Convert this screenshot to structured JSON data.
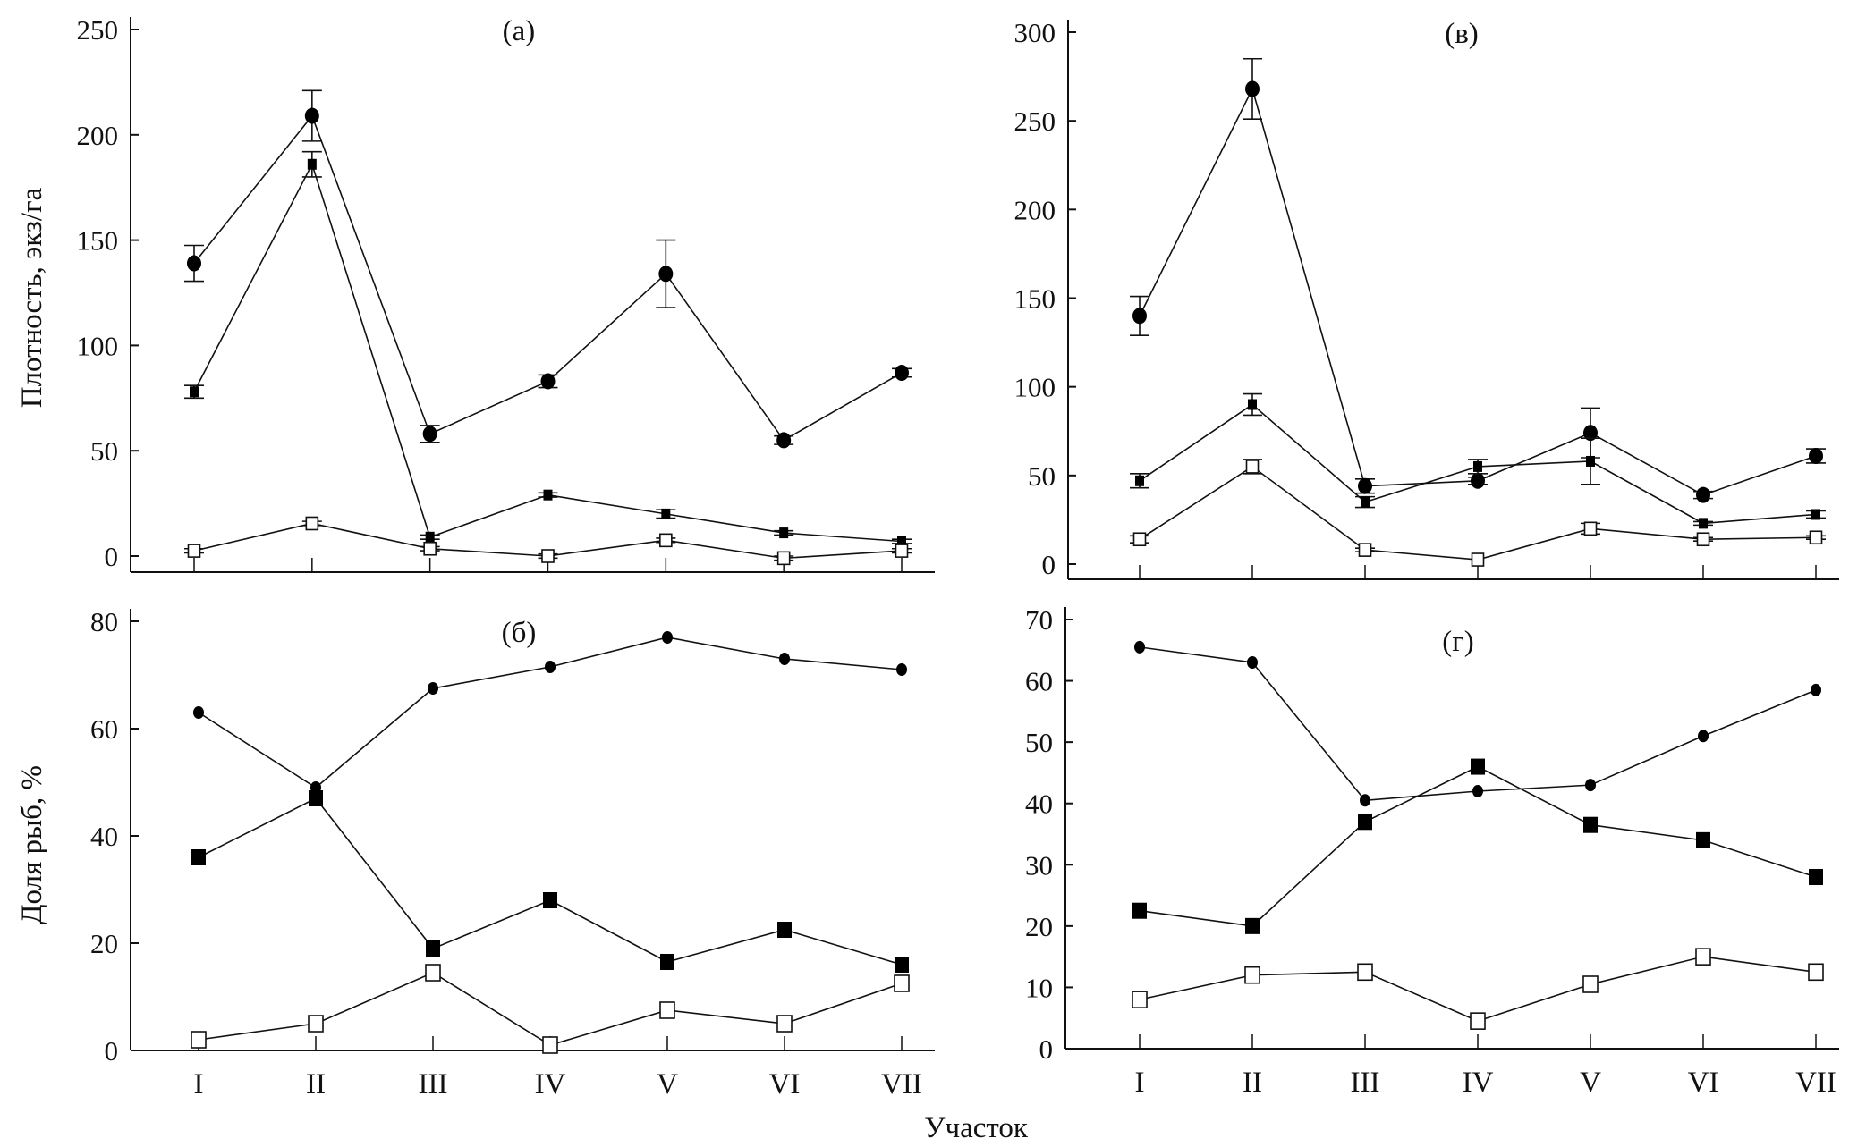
{
  "chart_data": [
    {
      "id": "a",
      "type": "line",
      "title": "(а)",
      "ylabel": "Плотность, экз/га",
      "categories": [
        "I",
        "II",
        "III",
        "IV",
        "V",
        "VI",
        "VII"
      ],
      "ylim": [
        0,
        250
      ],
      "yticks": [
        0,
        50,
        100,
        150,
        200,
        250
      ],
      "series": [
        {
          "marker": "filled-circle",
          "values": [
            139,
            209,
            58,
            83,
            134,
            55,
            87
          ],
          "errors": [
            8.5,
            12,
            4,
            3,
            16,
            2,
            2
          ]
        },
        {
          "marker": "small-filled-square",
          "values": [
            78,
            186,
            9,
            29,
            20,
            11,
            7
          ],
          "errors": [
            3,
            6,
            1,
            1,
            2,
            1,
            1
          ]
        },
        {
          "marker": "open-square",
          "values": [
            2.5,
            15.5,
            3.5,
            0,
            7.5,
            -1,
            2.5
          ],
          "errors": [
            1,
            1,
            1,
            1,
            1,
            1,
            1
          ]
        }
      ]
    },
    {
      "id": "v",
      "type": "line",
      "title": "(в)",
      "categories": [
        "I",
        "II",
        "III",
        "IV",
        "V",
        "VI",
        "VII"
      ],
      "ylim": [
        0,
        300
      ],
      "yticks": [
        0,
        50,
        100,
        150,
        200,
        250,
        300
      ],
      "series": [
        {
          "marker": "filled-circle",
          "values": [
            140,
            268,
            44,
            47,
            74,
            39,
            61
          ],
          "errors": [
            11,
            17,
            4,
            2,
            14,
            2,
            4
          ]
        },
        {
          "marker": "small-filled-square",
          "values": [
            47,
            90,
            35,
            55,
            58,
            23,
            28
          ],
          "errors": [
            4,
            6,
            3,
            4,
            13,
            1,
            2
          ]
        },
        {
          "marker": "open-square",
          "values": [
            14,
            55,
            8,
            2.5,
            20,
            14,
            15
          ],
          "errors": [
            2,
            4,
            1,
            0,
            3,
            1,
            1
          ]
        }
      ]
    },
    {
      "id": "b",
      "type": "line",
      "title": "(б)",
      "ylabel": "Доля рыб, %",
      "categories": [
        "I",
        "II",
        "III",
        "IV",
        "V",
        "VI",
        "VII"
      ],
      "ylim": [
        0,
        80
      ],
      "yticks": [
        0,
        20,
        40,
        60,
        80
      ],
      "series": [
        {
          "marker": "filled-circle",
          "values": [
            63,
            49,
            67.5,
            71.5,
            77,
            73,
            71
          ]
        },
        {
          "marker": "filled-square",
          "values": [
            36,
            47,
            19,
            28,
            16.5,
            22.5,
            16
          ]
        },
        {
          "marker": "open-square",
          "values": [
            2,
            5,
            14.5,
            1,
            7.5,
            5,
            12.5
          ]
        }
      ]
    },
    {
      "id": "g",
      "type": "line",
      "title": "(г)",
      "categories": [
        "I",
        "II",
        "III",
        "IV",
        "V",
        "VI",
        "VII"
      ],
      "ylim": [
        0,
        70
      ],
      "yticks": [
        0,
        10,
        20,
        30,
        40,
        50,
        60,
        70
      ],
      "series": [
        {
          "marker": "filled-circle",
          "values": [
            65.5,
            63,
            40.5,
            42,
            43,
            51,
            58.5
          ]
        },
        {
          "marker": "filled-square",
          "values": [
            22.5,
            20,
            37,
            46,
            36.5,
            34,
            28
          ]
        },
        {
          "marker": "open-square",
          "values": [
            8,
            12,
            12.5,
            4.5,
            10.5,
            15,
            12.5
          ]
        }
      ]
    }
  ],
  "xlabel": "Участок",
  "colors": {
    "line": "#111111",
    "fill": "#000000",
    "open": "#ffffff"
  }
}
